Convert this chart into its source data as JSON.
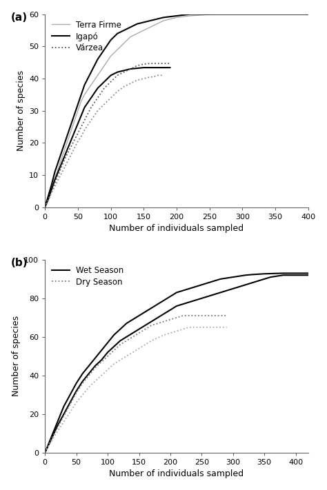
{
  "panel_a": {
    "title_label": "(a)",
    "xlabel": "Number of individuals sampled",
    "ylabel": "Number of species",
    "xlim": [
      0,
      400
    ],
    "ylim": [
      0,
      60
    ],
    "xticks": [
      0,
      50,
      100,
      150,
      200,
      250,
      300,
      350,
      400
    ],
    "yticks": [
      0,
      10,
      20,
      30,
      40,
      50,
      60
    ],
    "legend_labels": [
      "Terra Firme",
      "Igapó",
      "Várzea"
    ],
    "curves": [
      {
        "name": "terra_firme",
        "color": "#aaaaaa",
        "linestyle": "solid",
        "linewidth": 1.0,
        "x": [
          0,
          2,
          5,
          10,
          15,
          20,
          25,
          30,
          35,
          40,
          45,
          50,
          55,
          60,
          70,
          80,
          90,
          100,
          110,
          120,
          130,
          140,
          150,
          160,
          170,
          180,
          200,
          220,
          240,
          260,
          280,
          300,
          320,
          340,
          360,
          380,
          400
        ],
        "y": [
          0,
          1,
          3,
          6,
          9,
          12,
          15,
          18,
          21,
          24,
          27,
          30,
          33,
          35,
          38,
          41,
          44,
          47,
          49,
          51,
          53,
          54,
          55,
          56,
          57,
          58,
          59,
          59.5,
          59.8,
          60,
          60,
          60,
          60,
          60,
          60,
          60,
          60
        ]
      },
      {
        "name": "igapo_upper",
        "color": "#000000",
        "linestyle": "solid",
        "linewidth": 1.5,
        "x": [
          0,
          2,
          5,
          10,
          15,
          20,
          25,
          30,
          35,
          40,
          45,
          50,
          55,
          60,
          70,
          80,
          90,
          100,
          110,
          120,
          130,
          140,
          150,
          160,
          170,
          180,
          200,
          220,
          240,
          260,
          280,
          300,
          320,
          340,
          360,
          380,
          400
        ],
        "y": [
          0,
          1.5,
          3.5,
          7,
          11,
          14,
          17,
          20,
          23,
          26,
          29,
          32,
          35,
          38,
          42,
          46,
          49,
          52,
          54,
          55,
          56,
          57,
          57.5,
          58,
          58.5,
          59,
          59.5,
          60,
          60,
          60,
          60,
          60,
          60,
          60,
          60,
          60,
          60
        ]
      },
      {
        "name": "igapo_lower",
        "color": "#000000",
        "linestyle": "solid",
        "linewidth": 1.5,
        "x": [
          0,
          2,
          5,
          10,
          15,
          20,
          25,
          30,
          35,
          40,
          45,
          50,
          55,
          60,
          70,
          80,
          90,
          100,
          110,
          120,
          130,
          140,
          150,
          160,
          165,
          170,
          175,
          180,
          185,
          190
        ],
        "y": [
          0,
          1,
          2.5,
          5.5,
          8.5,
          11,
          13.5,
          16,
          18.5,
          21,
          23.5,
          26,
          28.5,
          31,
          34,
          37,
          39,
          41,
          42,
          42.5,
          43,
          43.2,
          43.4,
          43.4,
          43.4,
          43.4,
          43.4,
          43.4,
          43.4,
          43.4
        ]
      },
      {
        "name": "varzea_upper",
        "color": "#555555",
        "linestyle": "dotted",
        "linewidth": 1.3,
        "x": [
          0,
          2,
          5,
          10,
          15,
          20,
          25,
          30,
          35,
          40,
          45,
          50,
          55,
          60,
          70,
          80,
          90,
          100,
          110,
          120,
          130,
          140,
          150,
          155,
          160,
          165,
          170,
          175,
          180,
          185,
          190
        ],
        "y": [
          0,
          1,
          2.5,
          5,
          7.5,
          10,
          12.5,
          15,
          17,
          19,
          21,
          23,
          25,
          27,
          31,
          34,
          37,
          39,
          41,
          42,
          43,
          44,
          44.5,
          44.6,
          44.7,
          44.7,
          44.7,
          44.7,
          44.7,
          44.7,
          44.7
        ]
      },
      {
        "name": "varzea_lower",
        "color": "#888888",
        "linestyle": "dotted",
        "linewidth": 1.3,
        "x": [
          0,
          2,
          5,
          10,
          15,
          20,
          25,
          30,
          35,
          40,
          45,
          50,
          55,
          60,
          70,
          80,
          90,
          100,
          110,
          120,
          130,
          140,
          150,
          155,
          160,
          165,
          170,
          175,
          180
        ],
        "y": [
          0,
          0.8,
          2,
          4.5,
          6.5,
          8.5,
          10.5,
          12.5,
          14.5,
          16.5,
          18.5,
          20.5,
          22,
          24,
          27,
          30,
          32,
          34,
          36,
          37.5,
          38.5,
          39.5,
          40,
          40.2,
          40.5,
          40.5,
          41,
          41,
          41
        ]
      }
    ],
    "legend_styles": [
      {
        "color": "#aaaaaa",
        "linestyle": "solid",
        "linewidth": 1.0
      },
      {
        "color": "#000000",
        "linestyle": "solid",
        "linewidth": 1.5
      },
      {
        "color": "#555555",
        "linestyle": "dotted",
        "linewidth": 1.3
      }
    ]
  },
  "panel_b": {
    "title_label": "(b)",
    "xlabel": "Number of individuals sampled",
    "ylabel": "Number of species",
    "xlim": [
      0,
      420
    ],
    "ylim": [
      0,
      100
    ],
    "xticks": [
      0,
      50,
      100,
      150,
      200,
      250,
      300,
      350,
      400
    ],
    "yticks": [
      0,
      20,
      40,
      60,
      80,
      100
    ],
    "legend_labels": [
      "Wet Season",
      "Dry Season"
    ],
    "curves": [
      {
        "name": "wet_upper",
        "color": "#000000",
        "linestyle": "solid",
        "linewidth": 1.5,
        "x": [
          0,
          5,
          10,
          15,
          20,
          25,
          30,
          35,
          40,
          45,
          50,
          60,
          70,
          80,
          90,
          100,
          110,
          120,
          130,
          140,
          150,
          160,
          170,
          180,
          190,
          200,
          210,
          220,
          230,
          240,
          250,
          260,
          270,
          280,
          290,
          300,
          310,
          320,
          330,
          340,
          350,
          360,
          370,
          380,
          390,
          400,
          410,
          420
        ],
        "y": [
          0,
          4,
          8,
          12,
          16,
          20,
          24,
          27,
          30,
          33,
          36,
          41,
          45,
          49,
          53,
          57,
          61,
          64,
          67,
          69,
          71,
          73,
          75,
          77,
          79,
          81,
          83,
          84,
          85,
          86,
          87,
          88,
          89,
          90,
          90.5,
          91,
          91.5,
          92,
          92.3,
          92.5,
          92.7,
          92.8,
          92.9,
          93,
          93,
          93,
          93,
          93
        ]
      },
      {
        "name": "wet_lower",
        "color": "#000000",
        "linestyle": "solid",
        "linewidth": 1.5,
        "x": [
          0,
          5,
          10,
          15,
          20,
          25,
          30,
          35,
          40,
          45,
          50,
          60,
          70,
          80,
          90,
          100,
          110,
          120,
          130,
          140,
          150,
          160,
          170,
          180,
          190,
          200,
          210,
          220,
          230,
          240,
          250,
          260,
          270,
          280,
          290,
          300,
          310,
          320,
          330,
          340,
          350,
          360,
          370,
          380,
          390,
          400,
          410,
          420
        ],
        "y": [
          0,
          3.5,
          7,
          10.5,
          14,
          17,
          20,
          23,
          26,
          29,
          32,
          37,
          41,
          45,
          48,
          52,
          55,
          58,
          60,
          62,
          64,
          66,
          68,
          70,
          72,
          74,
          76,
          77,
          78,
          79,
          80,
          81,
          82,
          83,
          84,
          85,
          86,
          87,
          88,
          89,
          90,
          91,
          91.5,
          92,
          92,
          92,
          92,
          92
        ]
      },
      {
        "name": "dry_upper",
        "color": "#777777",
        "linestyle": "dotted",
        "linewidth": 1.3,
        "x": [
          0,
          5,
          10,
          15,
          20,
          25,
          30,
          35,
          40,
          45,
          50,
          60,
          70,
          80,
          90,
          100,
          110,
          120,
          130,
          140,
          150,
          160,
          170,
          180,
          190,
          200,
          210,
          220,
          230,
          240,
          250,
          260,
          270,
          280,
          285,
          290
        ],
        "y": [
          0,
          3.5,
          7,
          10,
          13,
          16,
          19,
          22,
          25,
          28,
          31,
          36,
          40,
          44,
          47,
          50,
          53,
          56,
          58,
          60,
          62,
          64,
          66,
          67,
          68,
          69,
          70,
          71,
          71,
          71,
          71,
          71,
          71,
          71,
          71,
          71
        ]
      },
      {
        "name": "dry_lower",
        "color": "#aaaaaa",
        "linestyle": "dotted",
        "linewidth": 1.3,
        "x": [
          0,
          5,
          10,
          15,
          20,
          25,
          30,
          35,
          40,
          45,
          50,
          60,
          70,
          80,
          90,
          100,
          110,
          120,
          130,
          140,
          150,
          160,
          170,
          180,
          190,
          200,
          210,
          220,
          230,
          240,
          250,
          260,
          270,
          280,
          285,
          290
        ],
        "y": [
          0,
          3,
          5.5,
          8.5,
          11,
          13.5,
          16,
          18.5,
          21,
          23.5,
          26,
          30,
          34,
          37,
          40,
          43,
          46,
          48,
          50,
          52,
          54,
          56,
          58,
          59.5,
          61,
          62,
          63,
          64,
          65,
          65,
          65,
          65,
          65,
          65,
          65,
          65
        ]
      }
    ],
    "legend_styles": [
      {
        "color": "#000000",
        "linestyle": "solid",
        "linewidth": 1.5
      },
      {
        "color": "#777777",
        "linestyle": "dotted",
        "linewidth": 1.3
      }
    ]
  },
  "figure_bg": "#ffffff",
  "axes_bg": "#ffffff",
  "tick_fontsize": 8,
  "label_fontsize": 9,
  "legend_fontsize": 8.5
}
